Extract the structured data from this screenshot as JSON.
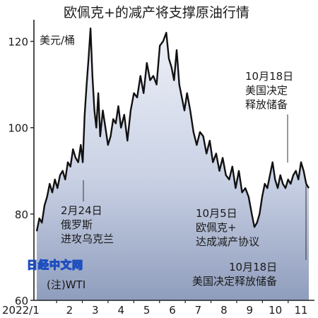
{
  "chart_data": {
    "type": "area",
    "title": "欧佩克+的减产将支撑原油行情",
    "unit": "美元/桶",
    "note": "(注)WTI",
    "watermark": "日经中文网",
    "ylim": [
      60,
      125
    ],
    "yticks": [
      60,
      80,
      100,
      120
    ],
    "xlim": [
      2022.0,
      2022.84
    ],
    "x_tick_labels": [
      "2022/1",
      "2",
      "3",
      "4",
      "5",
      "6",
      "7",
      "8",
      "9",
      "10",
      "11"
    ],
    "series": [
      {
        "x": [
          2022.0,
          2022.008,
          2022.016,
          2022.024,
          2022.032,
          2022.04,
          2022.048,
          2022.056,
          2022.064,
          2022.072,
          2022.08,
          2022.088,
          2022.096,
          2022.104,
          2022.112,
          2022.12,
          2022.128,
          2022.136,
          2022.142,
          2022.148,
          2022.154,
          2022.16,
          2022.166,
          2022.172,
          2022.178,
          2022.184,
          2022.19,
          2022.196,
          2022.204,
          2022.212,
          2022.22,
          2022.228,
          2022.236,
          2022.244,
          2022.252,
          2022.26,
          2022.27,
          2022.28,
          2022.29,
          2022.3,
          2022.31,
          2022.32,
          2022.33,
          2022.34,
          2022.35,
          2022.36,
          2022.37,
          2022.38,
          2022.39,
          2022.4,
          2022.408,
          2022.416,
          2022.424,
          2022.432,
          2022.44,
          2022.448,
          2022.456,
          2022.464,
          2022.474,
          2022.484,
          2022.494,
          2022.504,
          2022.514,
          2022.524,
          2022.534,
          2022.544,
          2022.554,
          2022.564,
          2022.574,
          2022.584,
          2022.594,
          2022.604,
          2022.614,
          2022.624,
          2022.634,
          2022.644,
          2022.654,
          2022.664,
          2022.672,
          2022.68,
          2022.688,
          2022.696,
          2022.704,
          2022.712,
          2022.72,
          2022.728,
          2022.736,
          2022.744,
          2022.752,
          2022.76,
          2022.768,
          2022.776,
          2022.784,
          2022.792,
          2022.8,
          2022.808,
          2022.816,
          2022.824,
          2022.832,
          2022.84
        ],
        "y": [
          76,
          79,
          78,
          82,
          84,
          87,
          85,
          88,
          86,
          89,
          90,
          88,
          92,
          91,
          95,
          93,
          92,
          96,
          92,
          103,
          110,
          116,
          123,
          112,
          104,
          100,
          108,
          98,
          104,
          100,
          96,
          98,
          102,
          101,
          105,
          100,
          103,
          97,
          104,
          108,
          107,
          112,
          108,
          115,
          111,
          112,
          110,
          119,
          120,
          122,
          116,
          114,
          111,
          118,
          110,
          107,
          104,
          108,
          104,
          99,
          96,
          99,
          98,
          94,
          97,
          92,
          94,
          90,
          93,
          89,
          88,
          91,
          86,
          90,
          85,
          86,
          84,
          80,
          77,
          78,
          80,
          84,
          87,
          86,
          89,
          92,
          88,
          86,
          89,
          87,
          86,
          88,
          87,
          89,
          90,
          88,
          92,
          90,
          87,
          86
        ]
      }
    ],
    "annotations": [
      {
        "lines": [
          "2月24日",
          "俄罗斯",
          "进攻乌克兰"
        ],
        "x": 2022.148,
        "y": 92
      },
      {
        "lines": [
          "10月5日",
          "欧佩克+",
          "达成减产协议"
        ],
        "x": 2022.672,
        "y": 77
      },
      {
        "lines": [
          "10月18日",
          "美国决定",
          "释放储备"
        ],
        "x": 2022.792,
        "y": 89
      },
      {
        "lines": [
          "10月18日",
          "美国决定释放储备"
        ],
        "x": 2022.832,
        "y": 86
      }
    ]
  }
}
